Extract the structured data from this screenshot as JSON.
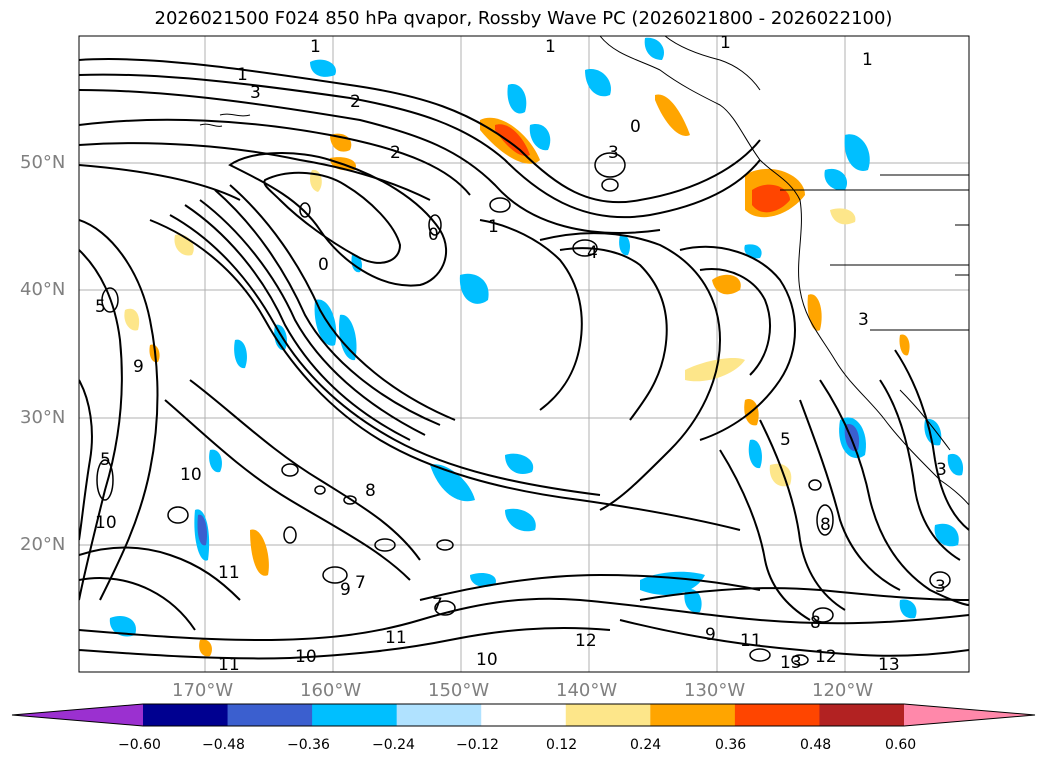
{
  "title": "2026021500 F024 850 hPa qvapor, Rossby Wave PC (2026021800 - 2026022100)",
  "lat_labels": [
    "50°N",
    "40°N",
    "30°N",
    "20°N"
  ],
  "lon_labels": [
    "170°W",
    "160°W",
    "150°W",
    "140°W",
    "130°W",
    "120°W"
  ],
  "contour_labels": [
    "1",
    "1",
    "1",
    "1",
    "2",
    "2",
    "3",
    "3",
    "3",
    "0",
    "0",
    "0",
    "1",
    "1",
    "4",
    "5",
    "5",
    "9",
    "9",
    "8",
    "8",
    "7",
    "10",
    "10",
    "10",
    "11",
    "11",
    "11",
    "11",
    "12",
    "12",
    "13",
    "13",
    "9",
    "8",
    "5",
    "3",
    "3",
    "7",
    "10"
  ],
  "colorbar": {
    "ticks": [
      "−0.60",
      "−0.48",
      "−0.36",
      "−0.24",
      "−0.12",
      "0.12",
      "0.24",
      "0.36",
      "0.48",
      "0.60"
    ],
    "colors": [
      "#9b30d0",
      "#000090",
      "#3b5fcf",
      "#00bfff",
      "#b0e2ff",
      "#ffffff",
      "#fde68a",
      "#ffa500",
      "#ff4500",
      "#b22222",
      "#ff88aa"
    ]
  }
}
